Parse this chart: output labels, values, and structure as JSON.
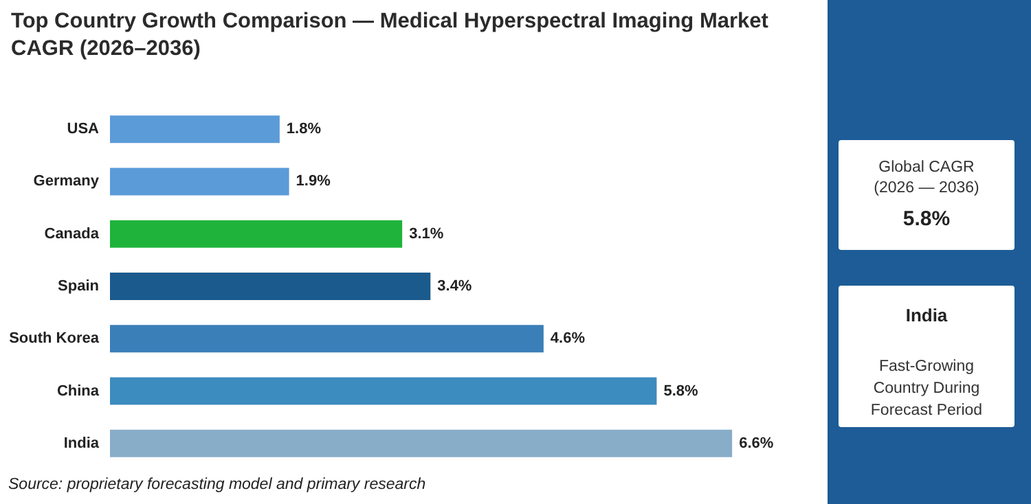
{
  "chart_data": {
    "type": "bar",
    "orientation": "horizontal",
    "title": "Top Country Growth Comparison — Medical Hyperspectral Imaging Market CAGR (2026–2036)",
    "categories": [
      "USA",
      "Germany",
      "Canada",
      "Spain",
      "South Korea",
      "China",
      "India"
    ],
    "values": [
      1.8,
      1.9,
      3.1,
      3.4,
      4.6,
      5.8,
      6.6
    ],
    "colors": [
      "#5b9bd8",
      "#5b9bd8",
      "#1fb33b",
      "#1b5a8c",
      "#3a7fb8",
      "#3d8cbf",
      "#88adc9"
    ],
    "value_labels": [
      "1.8%",
      "1.9%",
      "3.1%",
      "3.4%",
      "4.6%",
      "5.8%",
      "6.6%"
    ],
    "annotations": [
      "Source: proprietary forecasting model and primary research",
      "Global CAGR",
      "(2026 — 2036)",
      "5.8%",
      "India",
      "Fast-Growing Country During Forecast Period"
    ]
  }
}
